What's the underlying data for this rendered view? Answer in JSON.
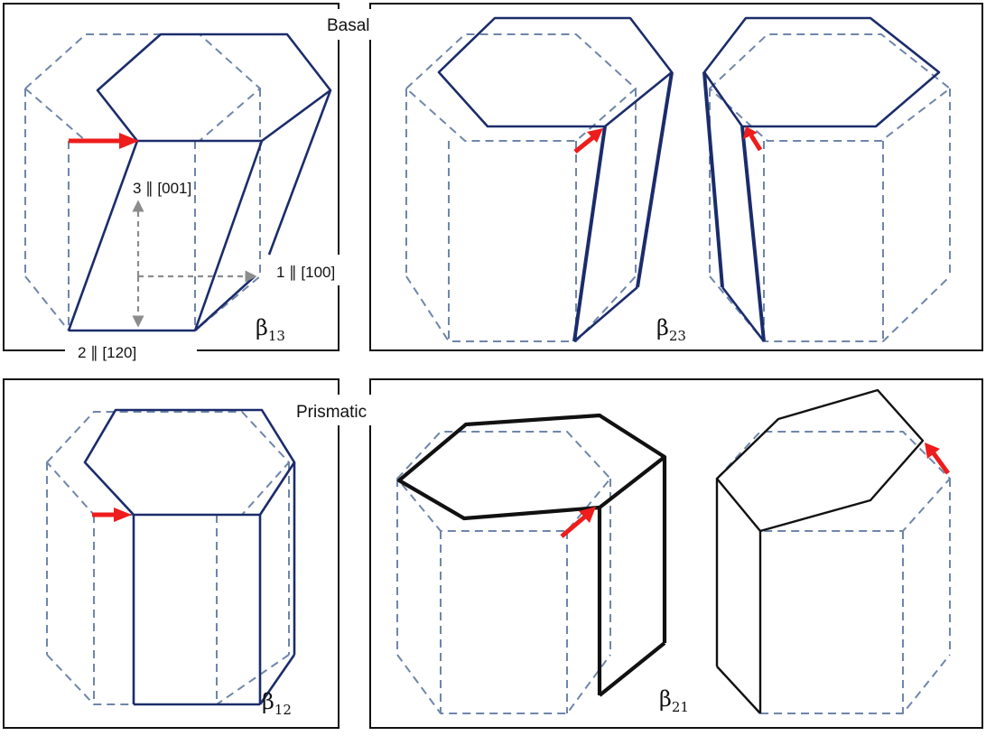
{
  "labels": {
    "basal": "Basal",
    "prismatic": "Prismatic"
  },
  "axes": {
    "axis_3": "3 ∥ [001]",
    "axis_1": "1 ∥ [100]",
    "axis_2": "2 ∥ [120]"
  },
  "panels": [
    {
      "id": "beta13",
      "symbol": "β",
      "subscript": "13"
    },
    {
      "id": "beta23",
      "symbol": "β",
      "subscript": "23"
    },
    {
      "id": "beta12",
      "symbol": "β",
      "subscript": "12"
    },
    {
      "id": "beta21",
      "symbol": "β",
      "subscript": "21"
    }
  ],
  "colors": {
    "reference_dashed": "#6f86aa",
    "deformed_basal": "#1b2c6b",
    "deformed_prismatic": "#111111",
    "arrow": "#ee1c1c",
    "axis_arrows": "#8c8c8c"
  }
}
